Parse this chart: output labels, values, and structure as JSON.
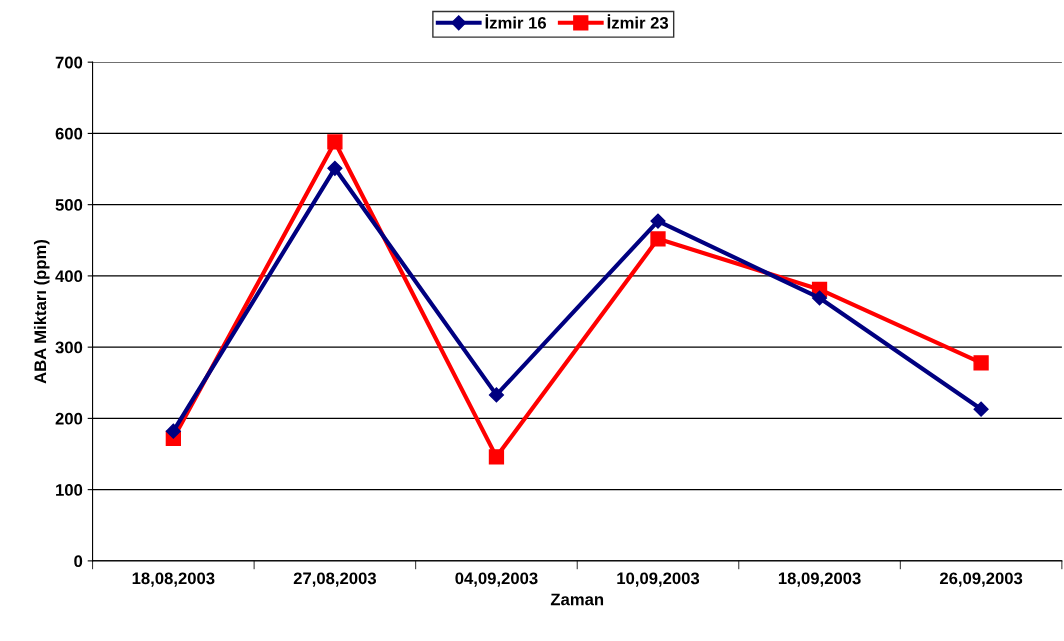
{
  "chart_data": {
    "type": "line",
    "xlabel": "Zaman",
    "ylabel": "ABA Miktarı (ppm)",
    "categories": [
      "18,08,2003",
      "27,08,2003",
      "04,09,2003",
      "10,09,2003",
      "18,09,2003",
      "26,09,2003"
    ],
    "series": [
      {
        "name": "İzmir 16",
        "color": "#000080",
        "marker": "diamond",
        "values": [
          182,
          551,
          233,
          477,
          369,
          213
        ]
      },
      {
        "name": "İzmir 23",
        "color": "#ff0000",
        "marker": "square",
        "values": [
          172,
          588,
          146,
          452,
          381,
          278
        ]
      }
    ],
    "ylim": [
      0,
      700
    ],
    "yticks": [
      0,
      100,
      200,
      300,
      400,
      500,
      600,
      700
    ],
    "grid": "y",
    "legend": "top",
    "line_style": "solid"
  }
}
